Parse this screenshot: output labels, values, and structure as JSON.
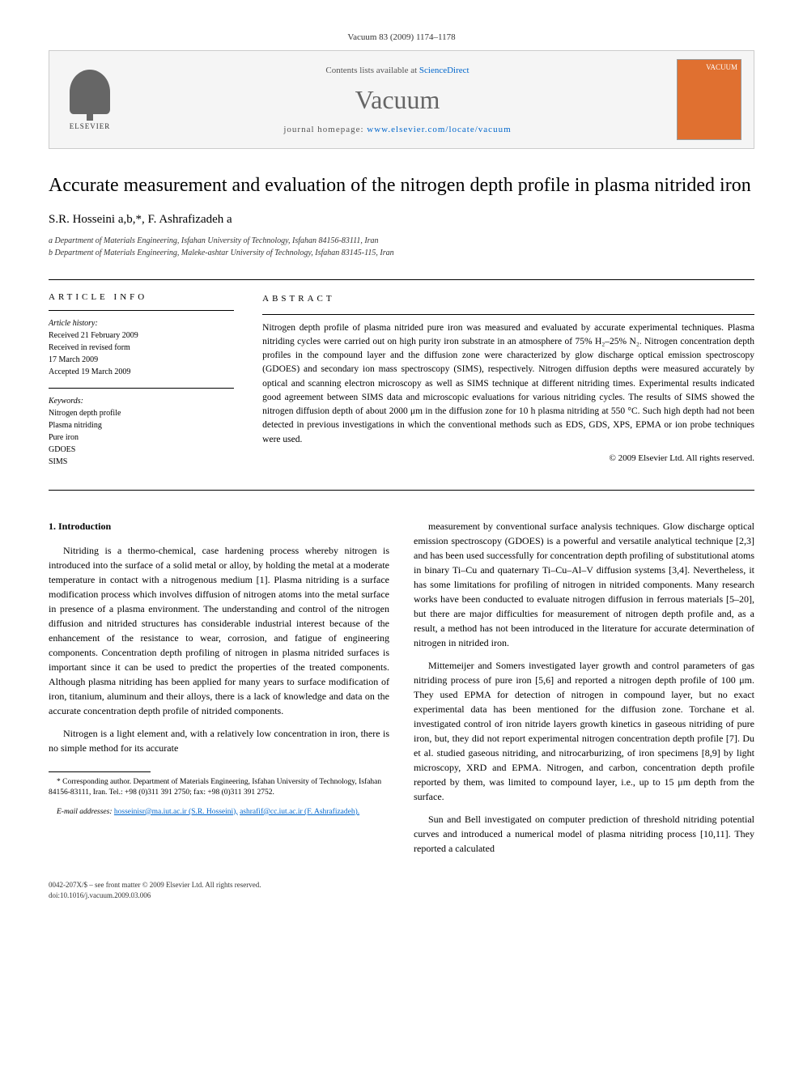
{
  "header": {
    "citation": "Vacuum 83 (2009) 1174–1178"
  },
  "masthead": {
    "contents_prefix": "Contents lists available at ",
    "contents_link": "ScienceDirect",
    "journal_name": "Vacuum",
    "homepage_prefix": "journal homepage: ",
    "homepage_url": "www.elsevier.com/locate/vacuum",
    "publisher": "ELSEVIER",
    "cover_label": "VACUUM"
  },
  "title": "Accurate measurement and evaluation of the nitrogen depth profile in plasma nitrided iron",
  "authors": "S.R. Hosseini a,b,*, F. Ashrafizadeh a",
  "affiliations": {
    "a": "a Department of Materials Engineering, Isfahan University of Technology, Isfahan 84156-83111, Iran",
    "b": "b Department of Materials Engineering, Maleke-ashtar University of Technology, Isfahan 83145-115, Iran"
  },
  "article_info": {
    "heading": "ARTICLE INFO",
    "history_label": "Article history:",
    "received": "Received 21 February 2009",
    "revised1": "Received in revised form",
    "revised2": "17 March 2009",
    "accepted": "Accepted 19 March 2009",
    "keywords_label": "Keywords:",
    "kw1": "Nitrogen depth profile",
    "kw2": "Plasma nitriding",
    "kw3": "Pure iron",
    "kw4": "GDOES",
    "kw5": "SIMS"
  },
  "abstract": {
    "heading": "ABSTRACT",
    "text": "Nitrogen depth profile of plasma nitrided pure iron was measured and evaluated by accurate experimental techniques. Plasma nitriding cycles were carried out on high purity iron substrate in an atmosphere of 75% H₂–25% N₂. Nitrogen concentration depth profiles in the compound layer and the diffusion zone were characterized by glow discharge optical emission spectroscopy (GDOES) and secondary ion mass spectroscopy (SIMS), respectively. Nitrogen diffusion depths were measured accurately by optical and scanning electron microscopy as well as SIMS technique at different nitriding times. Experimental results indicated good agreement between SIMS data and microscopic evaluations for various nitriding cycles. The results of SIMS showed the nitrogen diffusion depth of about 2000 μm in the diffusion zone for 10 h plasma nitriding at 550 °C. Such high depth had not been detected in previous investigations in which the conventional methods such as EDS, GDS, XPS, EPMA or ion probe techniques were used.",
    "copyright": "© 2009 Elsevier Ltd. All rights reserved."
  },
  "body": {
    "section_heading": "1. Introduction",
    "col1_p1": "Nitriding is a thermo-chemical, case hardening process whereby nitrogen is introduced into the surface of a solid metal or alloy, by holding the metal at a moderate temperature in contact with a nitrogenous medium [1]. Plasma nitriding is a surface modification process which involves diffusion of nitrogen atoms into the metal surface in presence of a plasma environment. The understanding and control of the nitrogen diffusion and nitrided structures has considerable industrial interest because of the enhancement of the resistance to wear, corrosion, and fatigue of engineering components. Concentration depth profiling of nitrogen in plasma nitrided surfaces is important since it can be used to predict the properties of the treated components. Although plasma nitriding has been applied for many years to surface modification of iron, titanium, aluminum and their alloys, there is a lack of knowledge and data on the accurate concentration depth profile of nitrided components.",
    "col1_p2": "Nitrogen is a light element and, with a relatively low concentration in iron, there is no simple method for its accurate",
    "col2_p1": "measurement by conventional surface analysis techniques. Glow discharge optical emission spectroscopy (GDOES) is a powerful and versatile analytical technique [2,3] and has been used successfully for concentration depth profiling of substitutional atoms in binary Ti–Cu and quaternary Ti–Cu–Al–V diffusion systems [3,4]. Nevertheless, it has some limitations for profiling of nitrogen in nitrided components. Many research works have been conducted to evaluate nitrogen diffusion in ferrous materials [5–20], but there are major difficulties for measurement of nitrogen depth profile and, as a result, a method has not been introduced in the literature for accurate determination of nitrogen in nitrided iron.",
    "col2_p2": "Mittemeijer and Somers investigated layer growth and control parameters of gas nitriding process of pure iron [5,6] and reported a nitrogen depth profile of 100 μm. They used EPMA for detection of nitrogen in compound layer, but no exact experimental data has been mentioned for the diffusion zone. Torchane et al. investigated control of iron nitride layers growth kinetics in gaseous nitriding of pure iron, but, they did not report experimental nitrogen concentration depth profile [7]. Du et al. studied gaseous nitriding, and nitrocarburizing, of iron specimens [8,9] by light microscopy, XRD and EPMA. Nitrogen, and carbon, concentration depth profile reported by them, was limited to compound layer, i.e., up to 15 μm depth from the surface.",
    "col2_p3": "Sun and Bell investigated on computer prediction of threshold nitriding potential curves and introduced a numerical model of plasma nitriding process [10,11]. They reported a calculated"
  },
  "footnote": {
    "corr": "* Corresponding author. Department of Materials Engineering, Isfahan University of Technology, Isfahan 84156-83111, Iran. Tel.: +98 (0)311 391 2750; fax: +98 (0)311 391 2752.",
    "email_label": "E-mail addresses:",
    "email1": "hosseinisr@ma.iut.ac.ir (S.R. Hosseini),",
    "email2": "ashrafif@cc.iut.ac.ir (F. Ashrafizadeh)."
  },
  "bottom": {
    "line1": "0042-207X/$ – see front matter © 2009 Elsevier Ltd. All rights reserved.",
    "line2": "doi:10.1016/j.vacuum.2009.03.006"
  },
  "colors": {
    "link": "#0066cc",
    "cover_bg": "#e07030",
    "masthead_bg": "#f5f5f5",
    "text": "#000000"
  }
}
